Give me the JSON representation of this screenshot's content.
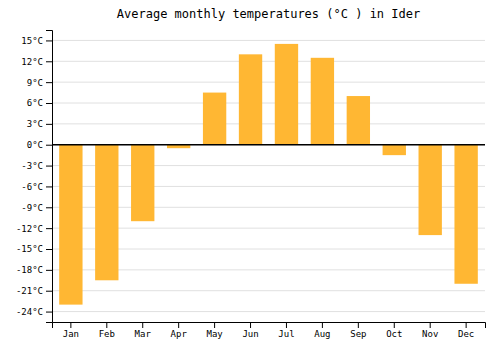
{
  "chart_data": {
    "type": "bar",
    "title": "Average monthly temperatures (°C ) in Ider",
    "categories": [
      "Jan",
      "Feb",
      "Mar",
      "Apr",
      "May",
      "Jun",
      "Jul",
      "Aug",
      "Sep",
      "Oct",
      "Nov",
      "Dec"
    ],
    "values": [
      -23,
      -19.5,
      -11,
      -0.5,
      7.5,
      13,
      14.5,
      12.5,
      7,
      -1.5,
      -13,
      -20
    ],
    "color": "#FFB733",
    "ylim": [
      -25.5,
      16.5
    ],
    "yticks": [
      {
        "value": -24,
        "label": "-24°C"
      },
      {
        "value": -21,
        "label": "-21°C"
      },
      {
        "value": -18,
        "label": "-18°C"
      },
      {
        "value": -15,
        "label": "-15°C"
      },
      {
        "value": -12,
        "label": "-12°C"
      },
      {
        "value": -9,
        "label": "-9°C"
      },
      {
        "value": -6,
        "label": "-6°C"
      },
      {
        "value": -3,
        "label": "-3°C"
      },
      {
        "value": 0,
        "label": "0°C"
      },
      {
        "value": 3,
        "label": "3°C"
      },
      {
        "value": 6,
        "label": "6°C"
      },
      {
        "value": 9,
        "label": "9°C"
      },
      {
        "value": 12,
        "label": "12°C"
      },
      {
        "value": 15,
        "label": "15°C"
      }
    ],
    "grid": true
  }
}
